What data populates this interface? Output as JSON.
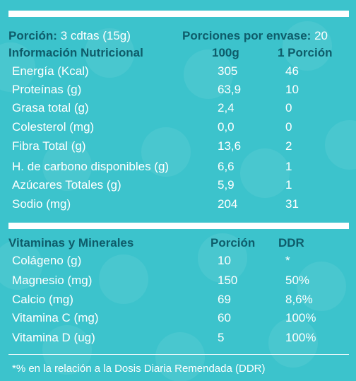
{
  "header": {
    "serving_label": "Porción:",
    "serving_value": "3 cdtas (15g)",
    "servings_per_pack_label": "Porciones por envase:",
    "servings_per_pack_value": "20"
  },
  "nutrition": {
    "title": "Información Nutricional",
    "col1": "100g",
    "col2": "1 Porción",
    "rows": [
      {
        "label": "Energía (Kcal)",
        "v100": "305",
        "portion": "46"
      },
      {
        "label": "Proteínas (g)",
        "v100": "63,9",
        "portion": "10"
      },
      {
        "label": "Grasa total (g)",
        "v100": "2,4",
        "portion": "0"
      },
      {
        "label": "Colesterol (mg)",
        "v100": "0,0",
        "portion": "0"
      },
      {
        "label": "Fibra Total (g)",
        "v100": "13,6",
        "portion": "2"
      },
      {
        "label": "H. de carbono disponibles (g)",
        "v100": "6,6",
        "portion": "1"
      },
      {
        "label": "Azúcares Totales (g)",
        "v100": "5,9",
        "portion": "1"
      },
      {
        "label": "Sodio (mg)",
        "v100": "204",
        "portion": "31"
      }
    ]
  },
  "vitamins": {
    "title": "Vitaminas y Minerales",
    "col1": "Porción",
    "col2": "DDR",
    "rows": [
      {
        "label": "Colágeno (g)",
        "portion": "10",
        "ddr": "*"
      },
      {
        "label": "Magnesio (mg)",
        "portion": "150",
        "ddr": "50%"
      },
      {
        "label": "Calcio (mg)",
        "portion": "69",
        "ddr": "8,6%"
      },
      {
        "label": "Vitamina C (mg)",
        "portion": "60",
        "ddr": "100%"
      },
      {
        "label": "Vitamina D (ug)",
        "portion": "5",
        "ddr": "100%"
      }
    ]
  },
  "footnote": "*% en la relación a la Dosis Diaria Remendada (DDR)",
  "colors": {
    "background": "#3cc3cc",
    "heading": "#0e5c6a",
    "text": "#ffffff"
  }
}
